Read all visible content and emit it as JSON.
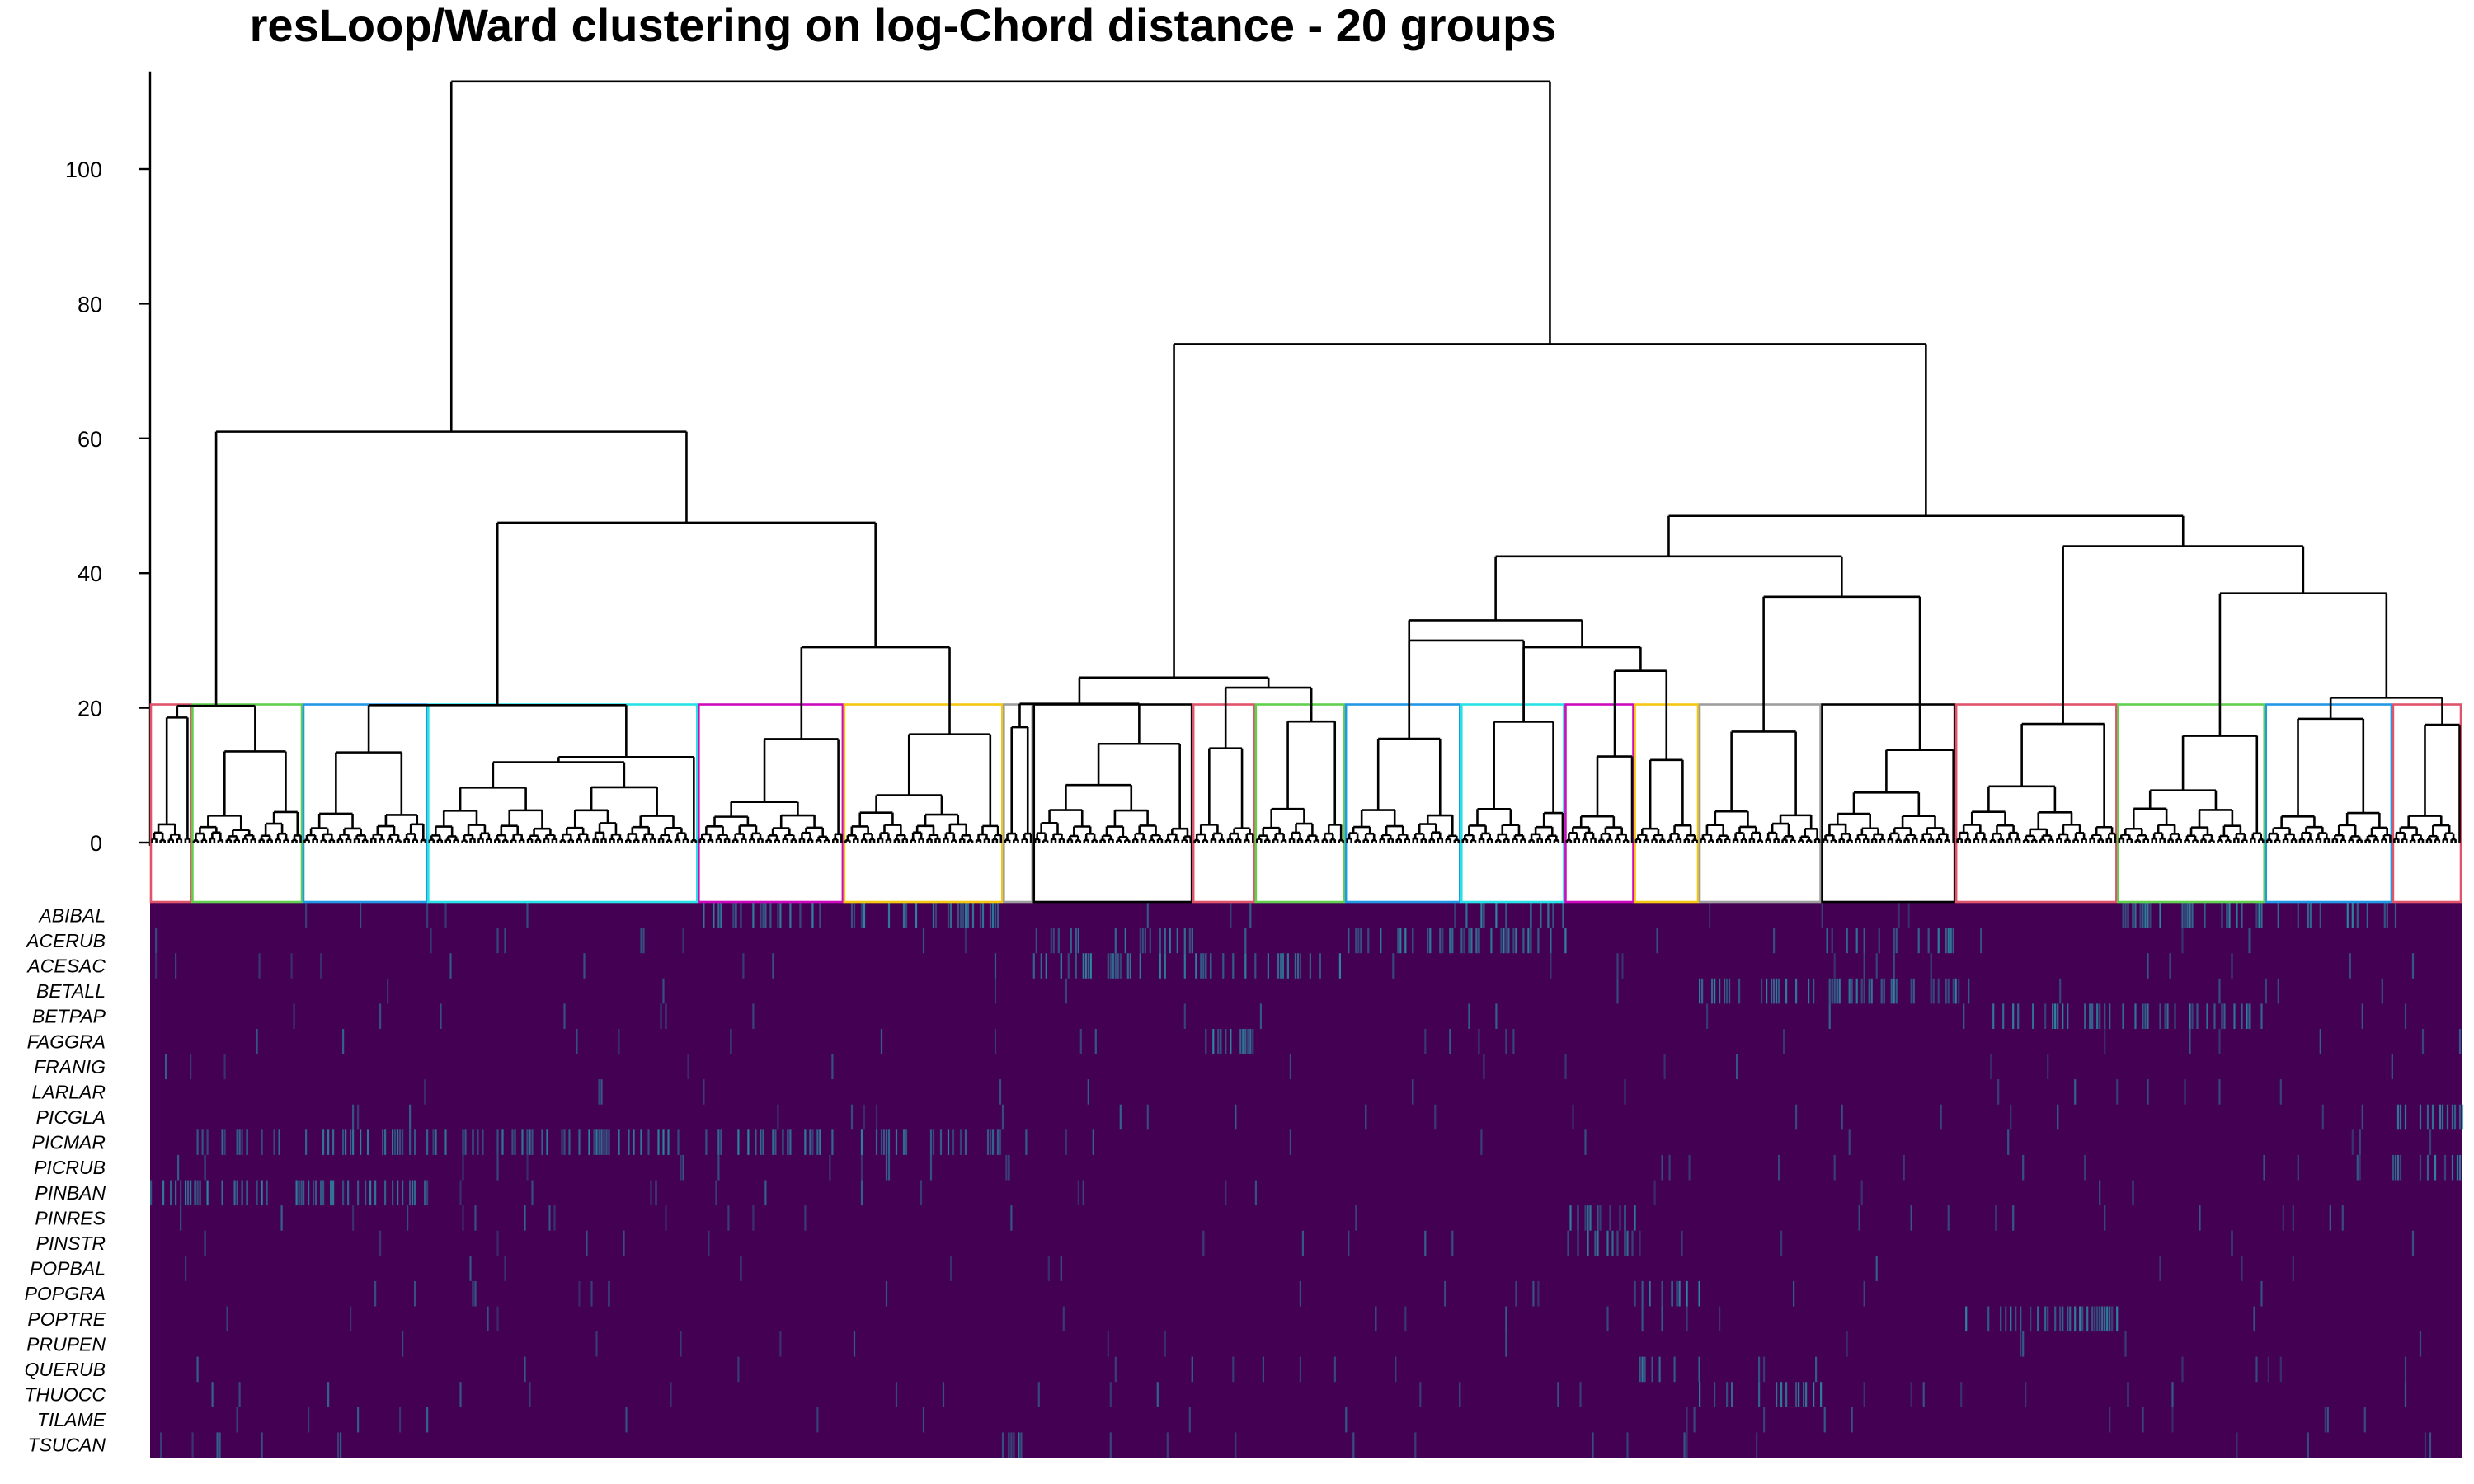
{
  "chart_data": {
    "type": "dendrogram-heatmap",
    "title": "resLoop/Ward clustering on log-Chord distance - 20 groups",
    "ylim": [
      0,
      113
    ],
    "y_ticks": [
      0,
      20,
      40,
      60,
      80,
      100
    ],
    "cut_height": 20.5,
    "n_groups": 20,
    "top_merges": [
      {
        "height": 113,
        "desc": "root"
      },
      {
        "height": 74,
        "desc": "right main branch"
      },
      {
        "height": 61,
        "desc": "left main branch"
      },
      {
        "height": 48.5,
        "desc": "right-middle branch"
      },
      {
        "height": 47.5,
        "desc": "left-middle branch"
      },
      {
        "height": 44,
        "desc": "right-right branch"
      },
      {
        "height": 42.5,
        "desc": "right-left branch"
      },
      {
        "height": 37,
        "desc": "far right branch"
      },
      {
        "height": 36.5,
        "desc": "right-center branch"
      },
      {
        "height": 33,
        "desc": "center-right branch"
      },
      {
        "height": 31.5,
        "desc": "left-center branch"
      },
      {
        "height": 29,
        "desc": "center branch"
      },
      {
        "height": 25.5,
        "desc": "center subbranch"
      },
      {
        "height": 24.5,
        "desc": "middle branch"
      },
      {
        "height": 23,
        "desc": "middle-right subbranch"
      }
    ],
    "groups": [
      {
        "id": 1,
        "color": "#DF536B",
        "x0": 0.0,
        "x1": 0.018,
        "dominant": [
          "PINBAN"
        ]
      },
      {
        "id": 2,
        "color": "#61D04F",
        "x0": 0.018,
        "x1": 0.066,
        "dominant": [
          "PINBAN",
          "PICMAR"
        ]
      },
      {
        "id": 3,
        "color": "#2297E6",
        "x0": 0.066,
        "x1": 0.12,
        "dominant": [
          "PICMAR",
          "PINBAN"
        ]
      },
      {
        "id": 4,
        "color": "#28E2E5",
        "x0": 0.12,
        "x1": 0.237,
        "dominant": [
          "PICMAR"
        ]
      },
      {
        "id": 5,
        "color": "#CD0BBC",
        "x0": 0.237,
        "x1": 0.3,
        "dominant": [
          "ABIBAL",
          "PICMAR"
        ]
      },
      {
        "id": 6,
        "color": "#F5C710",
        "x0": 0.3,
        "x1": 0.369,
        "dominant": [
          "PICMAR",
          "ABIBAL"
        ]
      },
      {
        "id": 7,
        "color": "#9E9E9E",
        "x0": 0.369,
        "x1": 0.382,
        "dominant": [
          "TSUCAN"
        ]
      },
      {
        "id": 8,
        "color": "#000000",
        "x0": 0.382,
        "x1": 0.451,
        "dominant": [
          "ACESAC",
          "ACERUB"
        ]
      },
      {
        "id": 9,
        "color": "#DF536B",
        "x0": 0.451,
        "x1": 0.478,
        "dominant": [
          "FAGGRA",
          "ACESAC"
        ]
      },
      {
        "id": 10,
        "color": "#61D04F",
        "x0": 0.478,
        "x1": 0.517,
        "dominant": [
          "ACESAC"
        ]
      },
      {
        "id": 11,
        "color": "#2297E6",
        "x0": 0.517,
        "x1": 0.567,
        "dominant": [
          "ACERUB"
        ]
      },
      {
        "id": 12,
        "color": "#28E2E5",
        "x0": 0.567,
        "x1": 0.612,
        "dominant": [
          "ACERUB",
          "ABIBAL"
        ]
      },
      {
        "id": 13,
        "color": "#CD0BBC",
        "x0": 0.612,
        "x1": 0.642,
        "dominant": [
          "PINSTR",
          "PINRES"
        ]
      },
      {
        "id": 14,
        "color": "#F5C710",
        "x0": 0.642,
        "x1": 0.67,
        "dominant": [
          "POPGRA",
          "QUERUB"
        ]
      },
      {
        "id": 15,
        "color": "#9E9E9E",
        "x0": 0.67,
        "x1": 0.723,
        "dominant": [
          "THUOCC",
          "BETALL"
        ]
      },
      {
        "id": 16,
        "color": "#000000",
        "x0": 0.723,
        "x1": 0.781,
        "dominant": [
          "BETALL",
          "ACERUB"
        ]
      },
      {
        "id": 17,
        "color": "#DF536B",
        "x0": 0.781,
        "x1": 0.851,
        "dominant": [
          "POPTRE",
          "BETPAP"
        ]
      },
      {
        "id": 18,
        "color": "#61D04F",
        "x0": 0.851,
        "x1": 0.915,
        "dominant": [
          "BETPAP",
          "ABIBAL"
        ]
      },
      {
        "id": 19,
        "color": "#2297E6",
        "x0": 0.915,
        "x1": 0.97,
        "dominant": [
          "ABIBAL"
        ]
      },
      {
        "id": 20,
        "color": "#DF536B",
        "x0": 0.97,
        "x1": 1.0,
        "dominant": [
          "PICGLA",
          "PICRUB"
        ]
      }
    ],
    "heatmap": {
      "rows": [
        "ABIBAL",
        "ACERUB",
        "ACESAC",
        "BETALL",
        "BETPAP",
        "FAGGRA",
        "FRANIG",
        "LARLAR",
        "PICGLA",
        "PICMAR",
        "PICRUB",
        "PINBAN",
        "PINRES",
        "PINSTR",
        "POPBAL",
        "POPGRA",
        "POPTRE",
        "PRUPEN",
        "QUERUB",
        "THUOCC",
        "TILAME",
        "TSUCAN"
      ],
      "background_color": "#440154",
      "high_color": "#2B8CA3"
    }
  }
}
